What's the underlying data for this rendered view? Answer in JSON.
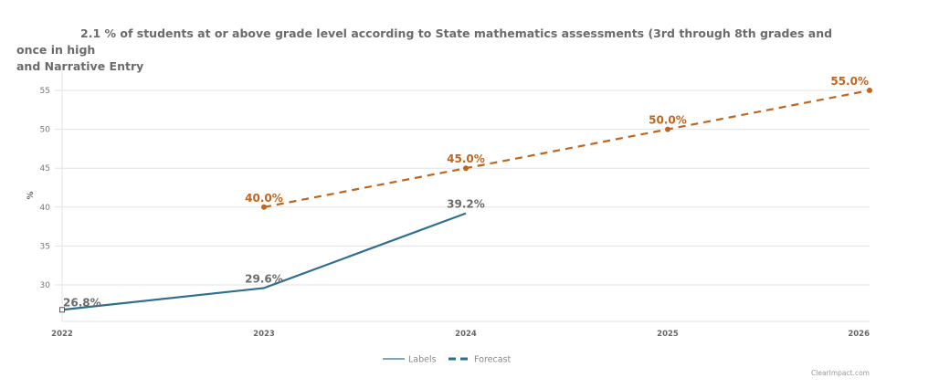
{
  "chart_data": {
    "type": "line",
    "title_line1": "2.1 % of students at or above grade level according to State mathematics assessments (3rd through 8th grades and once in high",
    "title_line2": "and Narrative Entry",
    "xlabel": "",
    "ylabel": "%",
    "x": [
      "2022",
      "2023",
      "2024",
      "2025",
      "2026"
    ],
    "yticks": [
      30,
      35,
      40,
      45,
      50,
      55
    ],
    "ylim": [
      25.3,
      57
    ],
    "grid": true,
    "legend_position": "bottom-center",
    "series": [
      {
        "name": "Labels",
        "style": "solid",
        "color": "#2e6e8e",
        "points": [
          {
            "x": "2022",
            "y": 26.8,
            "label": "26.8%"
          },
          {
            "x": "2023",
            "y": 29.6,
            "label": "29.6%"
          },
          {
            "x": "2024",
            "y": 39.2,
            "label": "39.2%"
          }
        ],
        "label_color": "#6b6b6b"
      },
      {
        "name": "Forecast",
        "style": "dashed",
        "color": "#c0651e",
        "points": [
          {
            "x": "2023",
            "y": 40.0,
            "label": "40.0%"
          },
          {
            "x": "2024",
            "y": 45.0,
            "label": "45.0%"
          },
          {
            "x": "2025",
            "y": 50.0,
            "label": "50.0%"
          },
          {
            "x": "2026",
            "y": 55.0,
            "label": "55.0%"
          }
        ],
        "label_color": "#c0651e"
      }
    ],
    "legend": [
      {
        "name": "Labels",
        "style": "solid",
        "color": "#5a87b0"
      },
      {
        "name": "Forecast",
        "style": "dashed",
        "color": "#2e6e8e"
      }
    ]
  },
  "footer": {
    "credit": "ClearImpact.com"
  }
}
